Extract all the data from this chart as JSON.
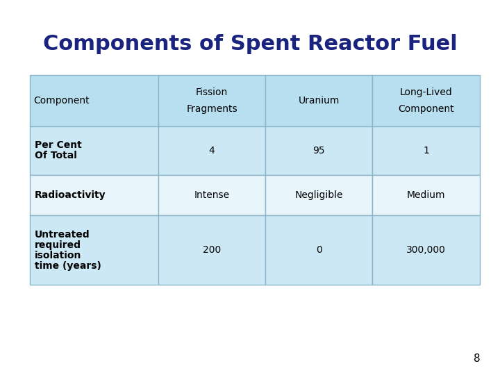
{
  "title": "Components of Spent Reactor Fuel",
  "title_color": "#1a237e",
  "title_fontsize": 22,
  "background_color": "#ffffff",
  "page_number": "8",
  "table": {
    "header_top": [
      "",
      "Fission",
      "",
      "Long-Lived"
    ],
    "header_bot": [
      "Component",
      "Fragments",
      "Uranium",
      "Component"
    ],
    "rows": [
      {
        "label": [
          "Per Cent",
          "Of Total"
        ],
        "values": [
          "4",
          "95",
          "1"
        ],
        "bg": "#cce8f4"
      },
      {
        "label": [
          "Radioactivity"
        ],
        "values": [
          "Intense",
          "Negligible",
          "Medium"
        ],
        "bg": "#e8f5fb"
      },
      {
        "label": [
          "Untreated",
          "required",
          "isolation",
          "time (years)"
        ],
        "values": [
          "200",
          "0",
          "300,000"
        ],
        "bg": "#cce8f4"
      }
    ],
    "header_bg": "#b8dff0",
    "border_color": "#8ab4c8",
    "text_color": "#000000",
    "header_fontsize": 10,
    "cell_fontsize": 10
  }
}
